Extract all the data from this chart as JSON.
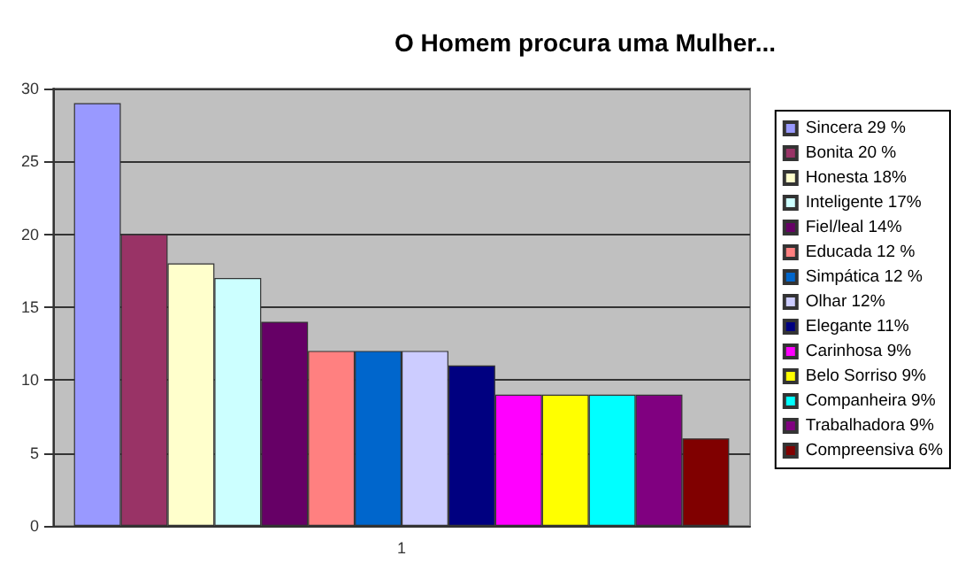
{
  "chart_data": {
    "type": "bar",
    "title": "O Homem procura uma Mulher...",
    "categories": [
      "1"
    ],
    "ylim": [
      0,
      30
    ],
    "yticks": [
      0,
      5,
      10,
      15,
      20,
      25,
      30
    ],
    "grid": "y",
    "legend": "right",
    "series": [
      {
        "name": "Sincera 29 %",
        "color": "#9999ff",
        "values": [
          29
        ]
      },
      {
        "name": "Bonita 20 %",
        "color": "#993366",
        "values": [
          20
        ]
      },
      {
        "name": "Honesta 18%",
        "color": "#ffffcc",
        "values": [
          18
        ]
      },
      {
        "name": "Inteligente 17%",
        "color": "#ccffff",
        "values": [
          17
        ]
      },
      {
        "name": "Fiel/leal 14%",
        "color": "#660066",
        "values": [
          14
        ]
      },
      {
        "name": "Educada 12 %",
        "color": "#ff8080",
        "values": [
          12
        ]
      },
      {
        "name": "Simpática 12 %",
        "color": "#0066cc",
        "values": [
          12
        ]
      },
      {
        "name": "Olhar 12%",
        "color": "#ccccff",
        "values": [
          12
        ]
      },
      {
        "name": "Elegante 11%",
        "color": "#000080",
        "values": [
          11
        ]
      },
      {
        "name": "Carinhosa 9%",
        "color": "#ff00ff",
        "values": [
          9
        ]
      },
      {
        "name": "Belo Sorriso 9%",
        "color": "#ffff00",
        "values": [
          9
        ]
      },
      {
        "name": "Companheira 9%",
        "color": "#00ffff",
        "values": [
          9
        ]
      },
      {
        "name": "Trabalhadora 9%",
        "color": "#800080",
        "values": [
          9
        ]
      },
      {
        "name": "Compreensiva 6%",
        "color": "#800000",
        "values": [
          6
        ]
      }
    ]
  }
}
